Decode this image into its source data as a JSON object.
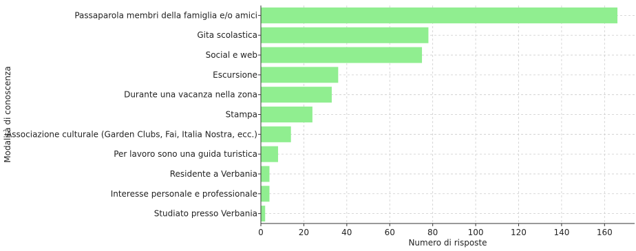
{
  "chart_data": {
    "type": "bar",
    "orientation": "horizontal",
    "categories": [
      "Passaparola membri della famiglia e/o amici",
      "Gita scolastica",
      "Social e web",
      "Escursione",
      "Durante una vacanza nella zona",
      "Stampa",
      "Associazione culturale (Garden Clubs, Fai, Italia Nostra, ecc.)",
      "Per lavoro sono una guida turistica",
      "Residente a Verbania",
      "Interesse personale e professionale",
      "Studiato presso Verbania"
    ],
    "values": [
      166,
      78,
      75,
      36,
      33,
      24,
      14,
      8,
      4,
      4,
      2
    ],
    "xlabel": "Numero di risposte",
    "ylabel": "Modalità di conoscenza",
    "xlim": [
      0,
      174
    ],
    "xticks": [
      0,
      20,
      40,
      60,
      80,
      100,
      120,
      140,
      160
    ],
    "grid": true,
    "colors": {
      "bar": "#90EE90",
      "grid": "#cccccc",
      "axis": "#333333"
    }
  }
}
